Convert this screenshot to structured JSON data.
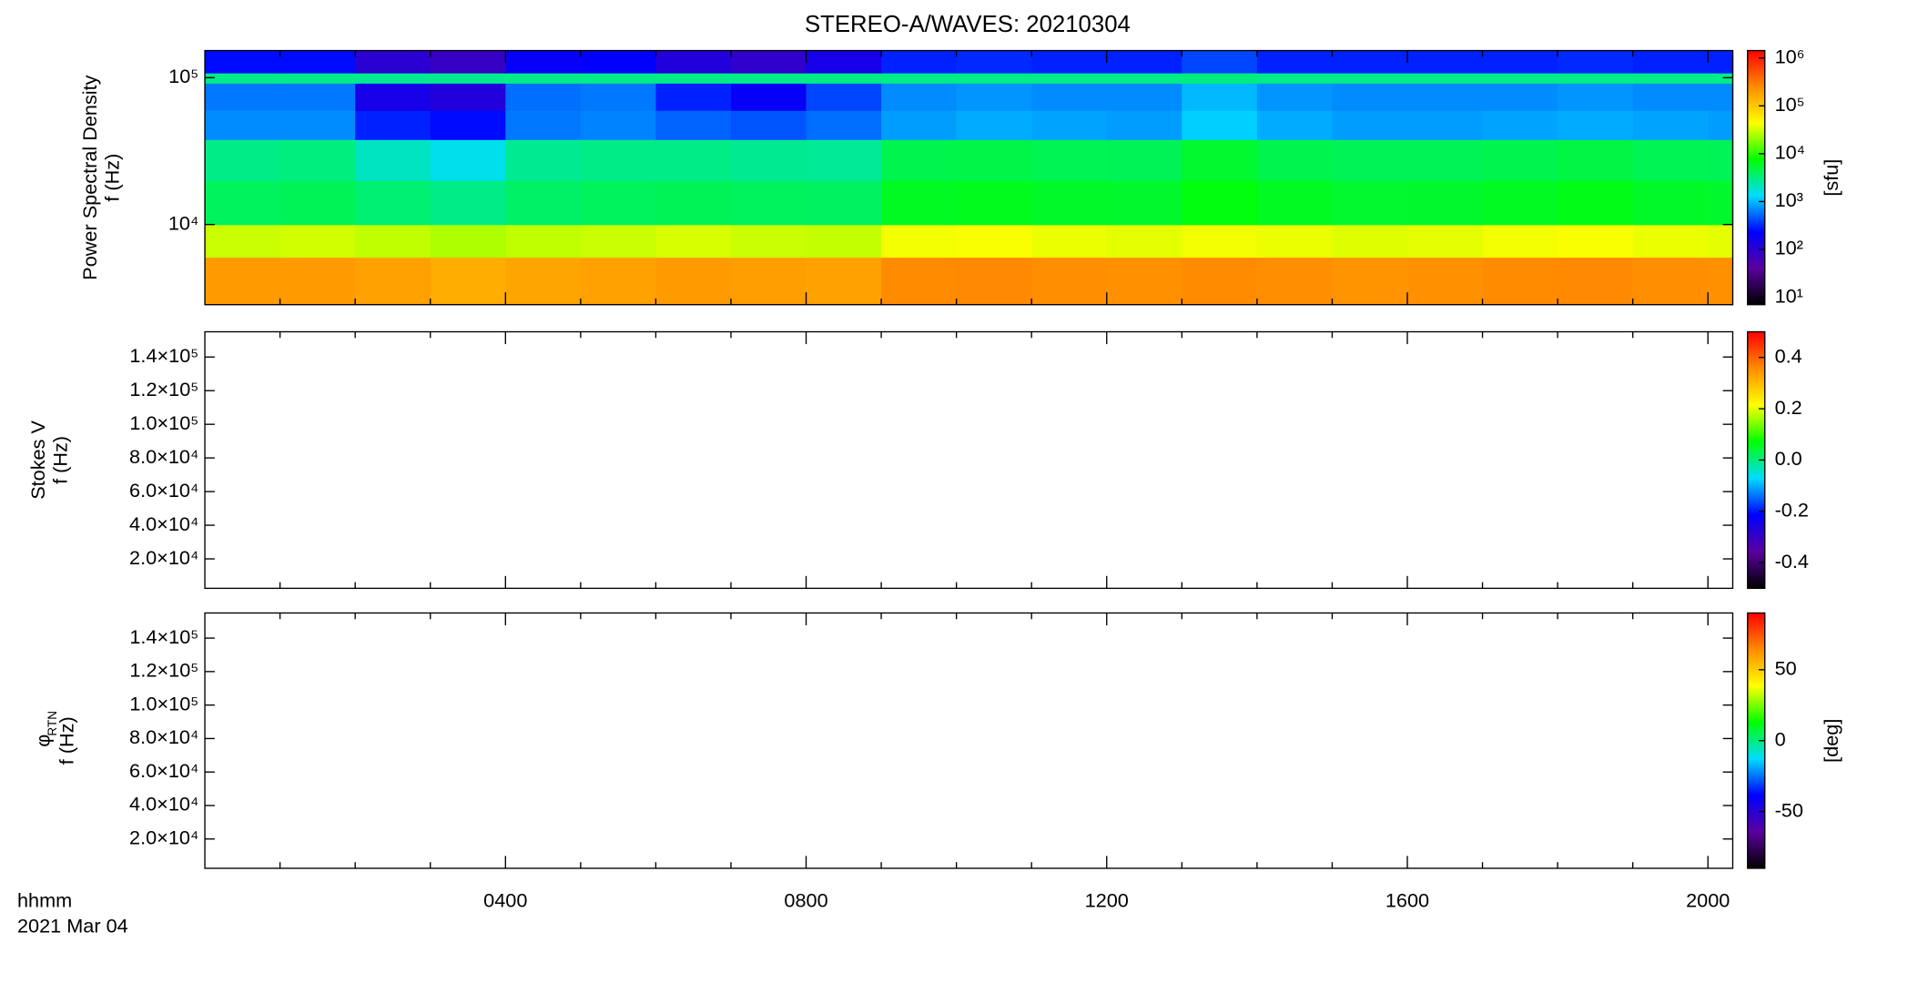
{
  "chart_data": {
    "type": "heatmap",
    "title": "STEREO-A/WAVES: 20210304",
    "xlabel": "hhmm",
    "date": "2021 Mar 04",
    "xlim": [
      0,
      20.33
    ],
    "xticks": [
      {
        "value": 4,
        "label": "0400"
      },
      {
        "value": 8,
        "label": "0800"
      },
      {
        "value": 12,
        "label": "1200"
      },
      {
        "value": 16,
        "label": "1600"
      },
      {
        "value": 20,
        "label": "2000"
      }
    ],
    "xminor": [
      1,
      2,
      3,
      5,
      6,
      7,
      9,
      10,
      11,
      13,
      14,
      15,
      17,
      18,
      19
    ],
    "colormap": [
      "#000000",
      "#5a00a0",
      "#0000ff",
      "#00dcff",
      "#00ff00",
      "#ffff00",
      "#ff8c00",
      "#ff0000"
    ],
    "panels": [
      {
        "ylabel": [
          "Power Spectral Density",
          "f (Hz)"
        ],
        "ylog": true,
        "ylim": [
          2845,
          153000
        ],
        "yticks": [
          {
            "value": 10000,
            "label": "10⁴"
          },
          {
            "value": 100000,
            "label": "10⁵"
          }
        ],
        "clabel": "[sfu]",
        "clog": true,
        "clim": [
          7,
          1430000
        ],
        "cticks": [
          {
            "value": 10,
            "label": "10¹"
          },
          {
            "value": 100,
            "label": "10²"
          },
          {
            "value": 1000,
            "label": "10³"
          },
          {
            "value": 10000,
            "label": "10⁴"
          },
          {
            "value": 100000,
            "label": "10⁵"
          },
          {
            "value": 1000000,
            "label": "10⁶"
          }
        ],
        "x_bins": [
          0,
          1,
          2,
          3,
          4,
          5,
          6,
          7,
          8,
          9,
          10,
          11,
          12,
          13,
          14,
          15,
          16,
          17,
          18,
          19,
          20,
          20.33
        ],
        "f_bins": [
          2845,
          6000,
          10000,
          20000,
          38000,
          60000,
          92000,
          108000,
          153000
        ],
        "z": [
          [
            200000,
            200000,
            180000,
            150000,
            170000,
            180000,
            200000,
            190000,
            180000,
            250000,
            260000,
            240000,
            230000,
            250000,
            240000,
            220000,
            230000,
            250000,
            260000,
            240000,
            230000
          ],
          [
            30000,
            32000,
            28000,
            25000,
            28000,
            30000,
            33000,
            30000,
            29000,
            40000,
            42000,
            38000,
            36000,
            40000,
            38000,
            35000,
            36000,
            40000,
            42000,
            38000,
            36000
          ],
          [
            4000,
            4200,
            3500,
            3000,
            3800,
            4000,
            4200,
            4000,
            3900,
            6000,
            6200,
            5800,
            5600,
            7000,
            6000,
            5500,
            5600,
            6000,
            6500,
            5800,
            5600
          ],
          [
            3000,
            3200,
            2000,
            1500,
            2800,
            3000,
            3000,
            2800,
            2700,
            4500,
            4600,
            4300,
            4200,
            5500,
            4500,
            4200,
            4200,
            4500,
            4800,
            4300,
            4200
          ],
          [
            700,
            700,
            300,
            250,
            600,
            650,
            500,
            450,
            550,
            800,
            900,
            850,
            800,
            1200,
            900,
            800,
            800,
            850,
            900,
            850,
            800
          ],
          [
            600,
            600,
            150,
            120,
            550,
            600,
            300,
            200,
            400,
            700,
            750,
            700,
            700,
            1000,
            750,
            700,
            700,
            700,
            750,
            700,
            700
          ],
          [
            3000,
            3000,
            2800,
            2800,
            3000,
            3000,
            3000,
            3000,
            3000,
            3000,
            3000,
            3000,
            3000,
            3200,
            3000,
            3000,
            3000,
            3000,
            3000,
            3000,
            3000
          ],
          [
            250,
            250,
            100,
            80,
            200,
            220,
            120,
            90,
            150,
            300,
            320,
            300,
            300,
            400,
            300,
            300,
            300,
            300,
            320,
            300,
            300
          ]
        ]
      },
      {
        "ylabel": [
          "Stokes V",
          "f (Hz)"
        ],
        "ylim": [
          2500,
          155000
        ],
        "yticks": [
          {
            "value": 20000,
            "label": "2.0×10⁴"
          },
          {
            "value": 40000,
            "label": "4.0×10⁴"
          },
          {
            "value": 60000,
            "label": "6.0×10⁴"
          },
          {
            "value": 80000,
            "label": "8.0×10⁴"
          },
          {
            "value": 100000,
            "label": "1.0×10⁵"
          },
          {
            "value": 120000,
            "label": "1.2×10⁵"
          },
          {
            "value": 140000,
            "label": "1.4×10⁵"
          }
        ],
        "clim": [
          -0.5,
          0.5
        ],
        "cticks": [
          -0.4,
          -0.2,
          {
            "value": 0,
            "label": "0.0"
          },
          0.2,
          0.4
        ]
      },
      {
        "ylabel": [
          "φ",
          "f (Hz)"
        ],
        "ylabel_sub": "RTN",
        "ylim": [
          2500,
          155000
        ],
        "yticks": [
          {
            "value": 20000,
            "label": "2.0×10⁴"
          },
          {
            "value": 40000,
            "label": "4.0×10⁴"
          },
          {
            "value": 60000,
            "label": "6.0×10⁴"
          },
          {
            "value": 80000,
            "label": "8.0×10⁴"
          },
          {
            "value": 100000,
            "label": "1.0×10⁵"
          },
          {
            "value": 120000,
            "label": "1.2×10⁵"
          },
          {
            "value": 140000,
            "label": "1.4×10⁵"
          }
        ],
        "clabel": "[deg]",
        "clim": [
          -90,
          90
        ],
        "cticks": [
          -50,
          0,
          50
        ]
      }
    ]
  }
}
